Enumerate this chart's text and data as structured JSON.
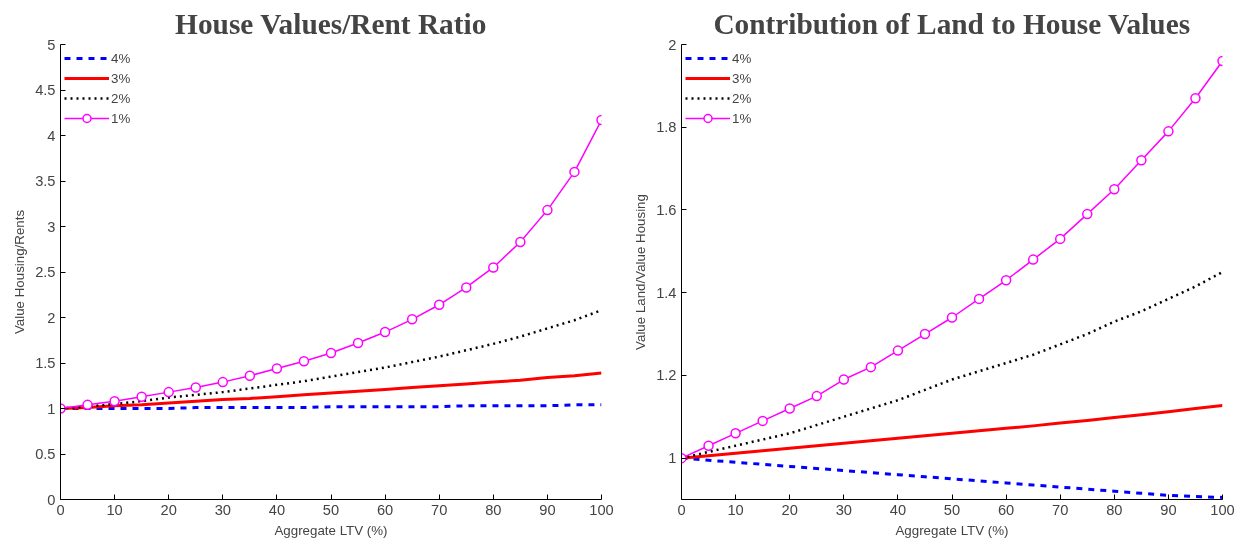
{
  "chart_data": [
    {
      "type": "line",
      "title": "House Values/Rent Ratio",
      "xlabel": "Aggregate LTV (%)",
      "ylabel": "Value Housing/Rents",
      "x": [
        0,
        5,
        10,
        15,
        20,
        25,
        30,
        35,
        40,
        45,
        50,
        55,
        60,
        65,
        70,
        75,
        80,
        85,
        90,
        95,
        100
      ],
      "xlim": [
        0,
        100
      ],
      "xticks": [
        0,
        10,
        20,
        30,
        40,
        50,
        60,
        70,
        80,
        90,
        100
      ],
      "ylim": [
        0,
        5
      ],
      "yticks": [
        0,
        0.5,
        1,
        1.5,
        2,
        2.5,
        3,
        3.5,
        4,
        4.5,
        5
      ],
      "grid": false,
      "legend": "top left",
      "series": [
        {
          "name": "4%",
          "color": "#0000ff",
          "line_style": "dashed",
          "marker": "none",
          "values": [
            1,
            1,
            1,
            1,
            1,
            1.01,
            1.01,
            1.01,
            1.01,
            1.01,
            1.02,
            1.02,
            1.02,
            1.02,
            1.02,
            1.03,
            1.03,
            1.03,
            1.03,
            1.04,
            1.04
          ]
        },
        {
          "name": "3%",
          "color": "#ff0000",
          "line_style": "solid",
          "marker": "none",
          "values": [
            1,
            1.01,
            1.03,
            1.04,
            1.06,
            1.08,
            1.1,
            1.11,
            1.13,
            1.15,
            1.17,
            1.19,
            1.21,
            1.23,
            1.25,
            1.27,
            1.29,
            1.31,
            1.34,
            1.36,
            1.39
          ]
        },
        {
          "name": "2%",
          "color": "#000000",
          "line_style": "dotted",
          "marker": "none",
          "values": [
            1,
            1.02,
            1.05,
            1.08,
            1.12,
            1.15,
            1.18,
            1.22,
            1.26,
            1.3,
            1.35,
            1.4,
            1.45,
            1.51,
            1.57,
            1.64,
            1.71,
            1.79,
            1.88,
            1.97,
            2.08
          ]
        },
        {
          "name": "1%",
          "color": "#ff00ff",
          "line_style": "solid",
          "marker": "circle",
          "values": [
            1,
            1.04,
            1.08,
            1.13,
            1.18,
            1.23,
            1.29,
            1.36,
            1.44,
            1.52,
            1.61,
            1.72,
            1.84,
            1.98,
            2.14,
            2.33,
            2.55,
            2.83,
            3.18,
            3.6,
            4.17
          ]
        }
      ]
    },
    {
      "type": "line",
      "title": "Contribution of Land to House Values",
      "xlabel": "Aggregate LTV (%)",
      "ylabel": "Value Land/Value Housing",
      "x": [
        0,
        5,
        10,
        15,
        20,
        25,
        30,
        35,
        40,
        45,
        50,
        55,
        60,
        65,
        70,
        75,
        80,
        85,
        90,
        95,
        100
      ],
      "xlim": [
        0,
        100
      ],
      "xticks": [
        0,
        10,
        20,
        30,
        40,
        50,
        60,
        70,
        80,
        90,
        100
      ],
      "ylim": [
        0.9,
        2
      ],
      "yticks": [
        1,
        1.2,
        1.4,
        1.6,
        1.8,
        2
      ],
      "grid": false,
      "legend": "top left",
      "series": [
        {
          "name": "4%",
          "color": "#0000ff",
          "line_style": "dashed",
          "marker": "none",
          "values": [
            1,
            0.995,
            0.99,
            0.985,
            0.98,
            0.975,
            0.97,
            0.965,
            0.96,
            0.955,
            0.95,
            0.945,
            0.94,
            0.935,
            0.93,
            0.925,
            0.92,
            0.915,
            0.91,
            0.907,
            0.905
          ]
        },
        {
          "name": "3%",
          "color": "#ff0000",
          "line_style": "solid",
          "marker": "none",
          "values": [
            1,
            1.006,
            1.012,
            1.018,
            1.024,
            1.03,
            1.036,
            1.042,
            1.048,
            1.054,
            1.06,
            1.066,
            1.072,
            1.078,
            1.085,
            1.091,
            1.098,
            1.105,
            1.112,
            1.12,
            1.127
          ]
        },
        {
          "name": "2%",
          "color": "#000000",
          "line_style": "dotted",
          "marker": "none",
          "values": [
            1,
            1.015,
            1.03,
            1.045,
            1.06,
            1.08,
            1.1,
            1.12,
            1.14,
            1.165,
            1.19,
            1.21,
            1.23,
            1.25,
            1.275,
            1.3,
            1.33,
            1.355,
            1.385,
            1.415,
            1.45
          ]
        },
        {
          "name": "1%",
          "color": "#ff00ff",
          "line_style": "solid",
          "marker": "circle",
          "values": [
            1,
            1.03,
            1.06,
            1.09,
            1.12,
            1.15,
            1.19,
            1.22,
            1.26,
            1.3,
            1.34,
            1.385,
            1.43,
            1.48,
            1.53,
            1.59,
            1.65,
            1.72,
            1.79,
            1.87,
            1.96
          ]
        }
      ]
    }
  ]
}
